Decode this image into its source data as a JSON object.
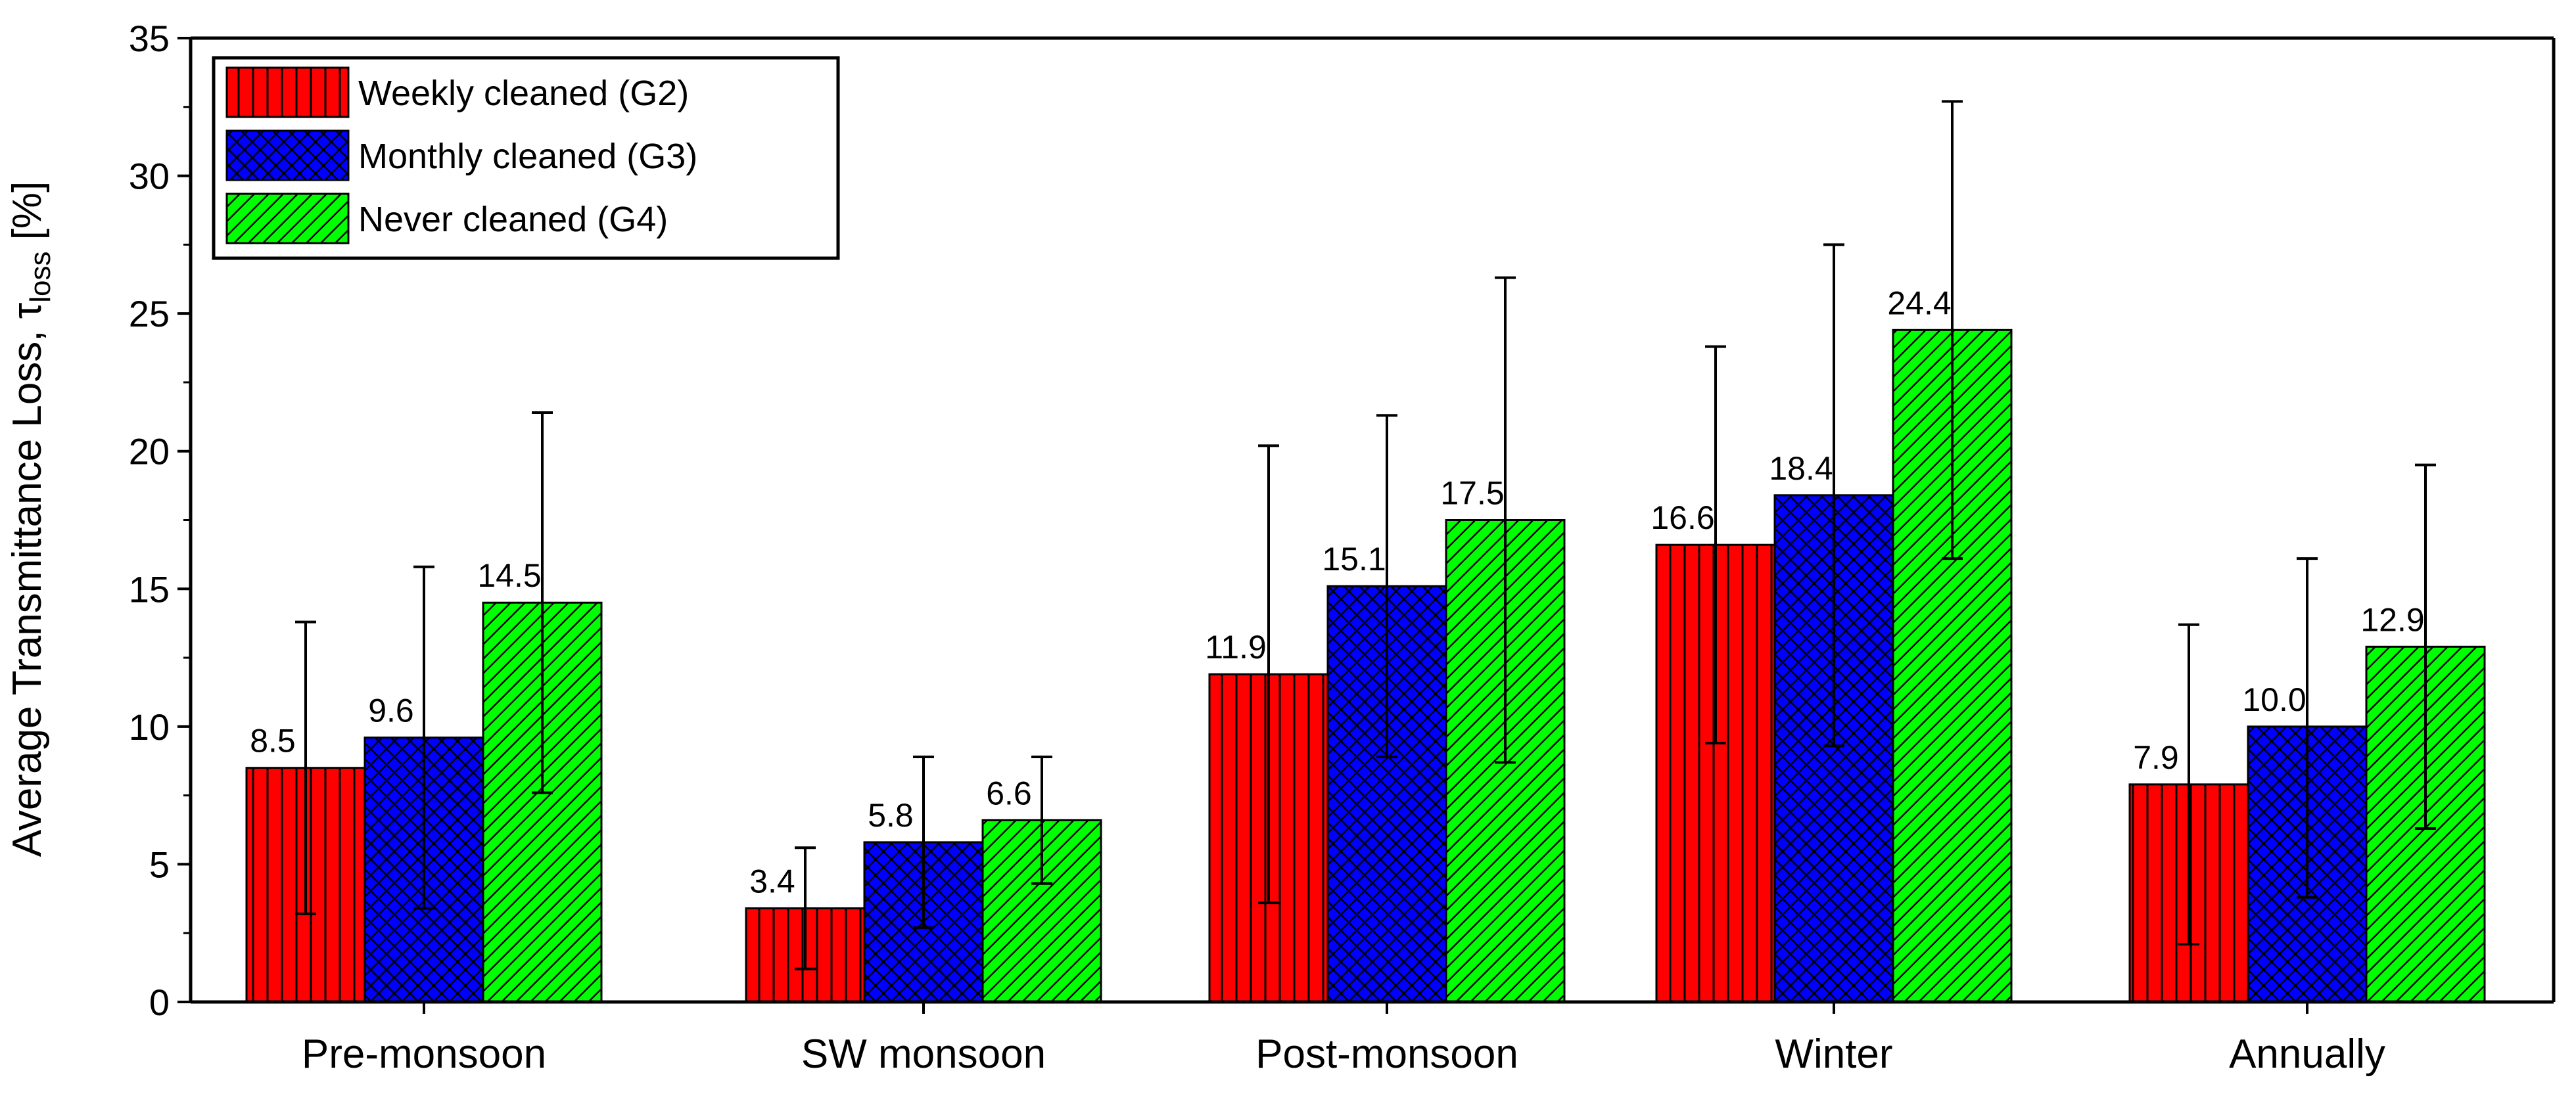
{
  "chart_data": {
    "type": "bar",
    "title": "",
    "xlabel": "",
    "ylabel": "Average Transmittance Loss, τ",
    "ylabel_subscript": "loss",
    "ylabel_unit": " [%]",
    "ylim": [
      0,
      35
    ],
    "yticks": [
      0,
      5,
      10,
      15,
      20,
      25,
      30,
      35
    ],
    "categories": [
      "Pre-monsoon",
      "SW monsoon",
      "Post-monsoon",
      "Winter",
      "Annually"
    ],
    "series": [
      {
        "name": "Weekly cleaned (G2)",
        "color": "#ff0000",
        "pattern": "vertical-lines",
        "values": [
          8.5,
          3.4,
          11.9,
          16.6,
          7.9
        ],
        "labels": [
          "8.5",
          "3.4",
          "11.9",
          "16.6",
          "7.9"
        ],
        "err_low": [
          3.2,
          1.2,
          3.6,
          9.4,
          2.1
        ],
        "err_high": [
          13.8,
          5.6,
          20.2,
          23.8,
          13.7
        ]
      },
      {
        "name": "Monthly cleaned (G3)",
        "color": "#0000ff",
        "pattern": "crosshatch",
        "values": [
          9.6,
          5.8,
          15.1,
          18.4,
          10.0
        ],
        "labels": [
          "9.6",
          "5.8",
          "15.1",
          "18.4",
          "10.0"
        ],
        "err_low": [
          3.4,
          2.7,
          8.9,
          9.3,
          3.8
        ],
        "err_high": [
          15.8,
          8.9,
          21.3,
          27.5,
          16.1
        ]
      },
      {
        "name": "Never cleaned (G4)",
        "color": "#00ff00",
        "pattern": "diagonal-lines",
        "values": [
          14.5,
          6.6,
          17.5,
          24.4,
          12.9
        ],
        "labels": [
          "14.5",
          "6.6",
          "17.5",
          "24.4",
          "12.9"
        ],
        "err_low": [
          7.6,
          4.3,
          8.7,
          16.1,
          6.3
        ],
        "err_high": [
          21.4,
          8.9,
          26.3,
          32.7,
          19.5
        ]
      }
    ],
    "legend": {
      "position": "top-left"
    },
    "grid": false
  }
}
